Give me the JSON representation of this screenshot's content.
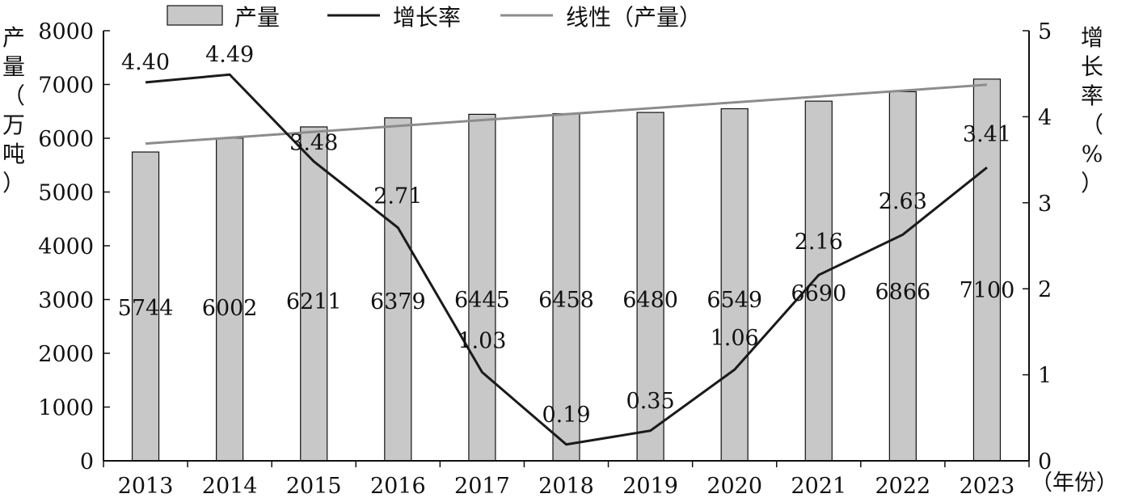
{
  "chart_data": {
    "type": "bar",
    "categories": [
      "2013",
      "2014",
      "2015",
      "2016",
      "2017",
      "2018",
      "2019",
      "2020",
      "2021",
      "2022",
      "2023"
    ],
    "x_unit": "（年份）",
    "series": [
      {
        "name": "产量",
        "kind": "bar",
        "axis": "left",
        "color": "#c8c8c8",
        "values": [
          5744,
          6002,
          6211,
          6379,
          6445,
          6458,
          6480,
          6549,
          6690,
          6866,
          7100
        ]
      },
      {
        "name": "增长率",
        "kind": "line",
        "axis": "right",
        "color": "#1a1a1a",
        "values": [
          4.4,
          4.49,
          3.48,
          2.71,
          1.03,
          0.19,
          0.35,
          1.06,
          2.16,
          2.63,
          3.41
        ]
      },
      {
        "name": "线性（产量）",
        "kind": "trendline",
        "axis": "left",
        "color": "#8c8c8c"
      }
    ],
    "y_left": {
      "label": "产量（万吨）",
      "min": 0,
      "max": 8000,
      "ticks": [
        0,
        1000,
        2000,
        3000,
        4000,
        5000,
        6000,
        7000,
        8000
      ]
    },
    "y_right": {
      "label": "增长率（%）",
      "min": 0,
      "max": 5,
      "ticks": [
        0,
        1,
        2,
        3,
        4,
        5
      ]
    },
    "bar_labels": [
      "5744",
      "6002",
      "6211",
      "6379",
      "6445",
      "6458",
      "6480",
      "6549",
      "6690",
      "6866",
      "7100"
    ],
    "rate_labels": [
      "4.40",
      "4.49",
      "3.48",
      "2.71",
      "1.03",
      "0.19",
      "0.35",
      "1.06",
      "2.16",
      "2.63",
      "3.41"
    ],
    "legend": {
      "placement": "top-center",
      "items": [
        "产量",
        "增长率",
        "线性（产量）"
      ]
    },
    "grid": false
  }
}
